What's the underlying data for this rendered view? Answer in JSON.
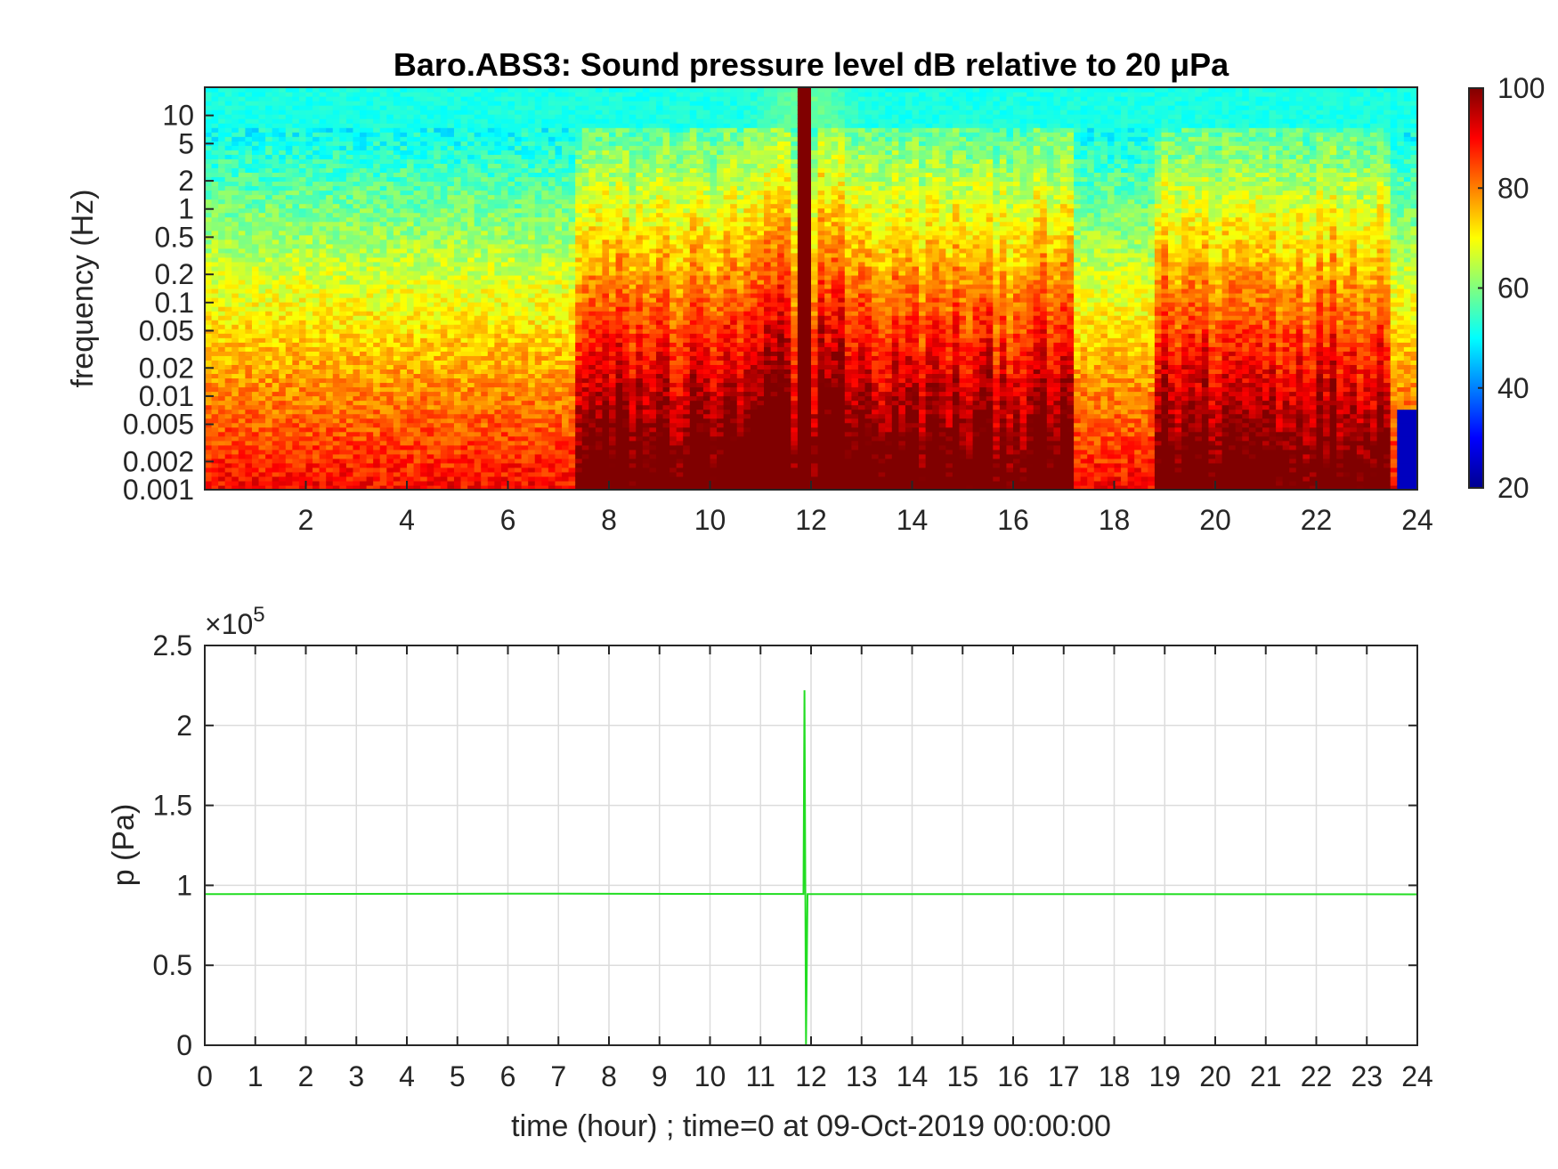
{
  "chart_data": [
    {
      "type": "heatmap",
      "title": "Baro.ABS3: Sound pressure level dB relative to 20 μPa",
      "ylabel": "frequency (Hz)",
      "y_scale": "log",
      "xlim": [
        0,
        24
      ],
      "ylim": [
        0.001,
        20
      ],
      "x_ticks": [
        2,
        4,
        6,
        8,
        10,
        12,
        14,
        16,
        18,
        20,
        22,
        24
      ],
      "y_ticks": [
        0.001,
        0.002,
        0.005,
        0.01,
        0.02,
        0.05,
        0.1,
        0.2,
        0.5,
        1,
        2,
        5,
        10
      ],
      "y_tick_labels": [
        "0.001",
        "0.002",
        "0.005",
        "0.01",
        "0.02",
        "0.05",
        "0.1",
        "0.2",
        "0.5",
        "1",
        "2",
        "5",
        "10"
      ],
      "colorbar": {
        "range": [
          20,
          100
        ],
        "ticks": [
          20,
          40,
          60,
          80,
          100
        ],
        "colormap": "jet"
      },
      "features": {
        "event_time_hour": 11.9,
        "high_activity_bands_hours": [
          [
            7.3,
            11.6
          ],
          [
            12.2,
            17.2
          ],
          [
            18.8,
            23.5
          ]
        ],
        "background_level_high_freq_db": 50,
        "background_level_low_freq_db": 90
      },
      "grid": false
    },
    {
      "type": "line",
      "xlabel": "time (hour) ; time=0 at 09-Oct-2019 00:00:00",
      "ylabel": "p (Pa)",
      "y_multiplier": "×10",
      "y_exponent": "5",
      "xlim": [
        0,
        24
      ],
      "ylim": [
        0,
        250000
      ],
      "x_ticks": [
        0,
        1,
        2,
        3,
        4,
        5,
        6,
        7,
        8,
        9,
        10,
        11,
        12,
        13,
        14,
        15,
        16,
        17,
        18,
        19,
        20,
        21,
        22,
        23,
        24
      ],
      "y_ticks": [
        0,
        50000,
        100000,
        150000,
        200000,
        250000
      ],
      "y_tick_labels": [
        "0",
        "0.5",
        "1",
        "1.5",
        "2",
        "2.5"
      ],
      "grid": true,
      "series": [
        {
          "color": "#22dd22",
          "x": [
            0,
            6,
            11.85,
            11.87,
            11.9,
            11.93,
            11.95,
            18,
            24
          ],
          "y": [
            94500,
            94800,
            94600,
            222000,
            0,
            94500,
            94500,
            94500,
            94400
          ]
        }
      ]
    }
  ]
}
